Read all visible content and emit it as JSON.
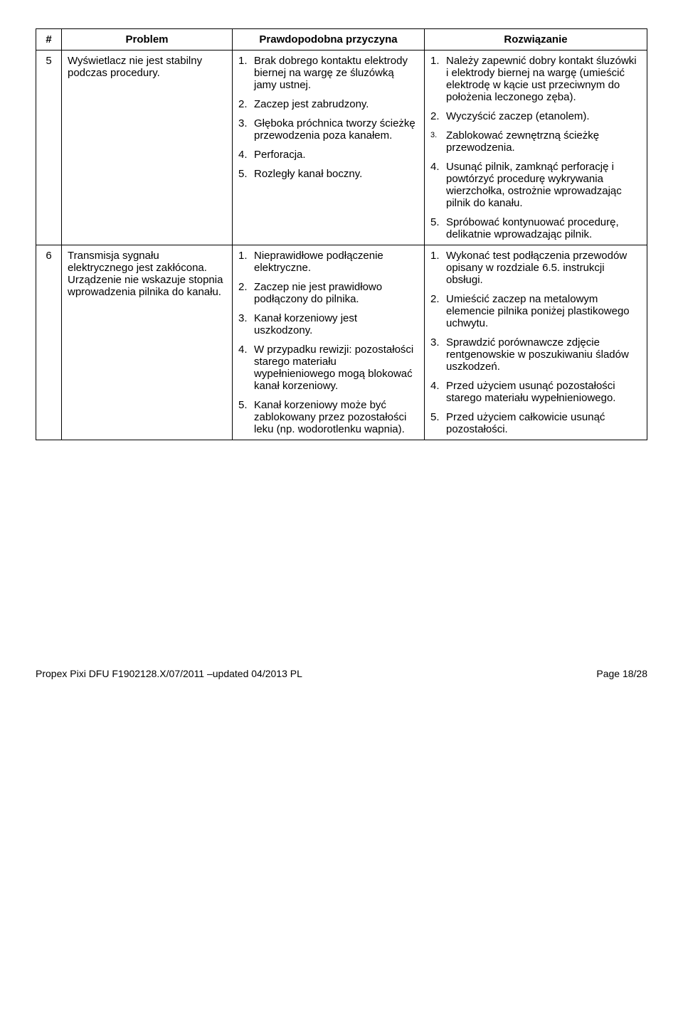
{
  "headers": {
    "num": "#",
    "problem": "Problem",
    "cause": "Prawdopodobna przyczyna",
    "solution": "Rozwiązanie"
  },
  "rows": [
    {
      "num": "5",
      "problem": "Wyświetlacz nie jest stabilny podczas procedury.",
      "causes": [
        {
          "n": "1.",
          "t": "Brak dobrego kontaktu elektrody biernej na wargę ze śluzówką jamy ustnej."
        },
        {
          "n": "2.",
          "t": "Zaczep jest zabrudzony."
        },
        {
          "n": "3.",
          "t": "Głęboka próchnica tworzy ścieżkę przewodzenia poza kanałem."
        },
        {
          "n": "4.",
          "t": "Perforacja."
        },
        {
          "n": "5.",
          "t": "Rozległy kanał boczny."
        }
      ],
      "solutions": [
        {
          "n": "1.",
          "t": "Należy zapewnić dobry kontakt śluzówki i elektrody biernej na wargę (umieścić elektrodę w kącie ust przeciwnym do położenia leczonego zęba)."
        },
        {
          "n": "2.",
          "t": "Wyczyścić zaczep (etanolem)."
        },
        {
          "n": "3.",
          "t": "Zablokować zewnętrzną ścieżkę przewodzenia.",
          "small": true
        },
        {
          "n": "4.",
          "t": "Usunąć pilnik, zamknąć perforację i powtórzyć procedurę wykrywania wierzchołka, ostrożnie wprowadzając pilnik do kanału."
        },
        {
          "n": "5.",
          "t": "Spróbować kontynuować procedurę, delikatnie wprowadzając pilnik."
        }
      ]
    },
    {
      "num": "6",
      "problem": "Transmisja sygnału elektrycznego jest zakłócona. Urządzenie nie wskazuje stopnia wprowadzenia pilnika do kanału.",
      "causes": [
        {
          "n": "1.",
          "t": "Nieprawidłowe podłączenie elektryczne."
        },
        {
          "n": "2.",
          "t": "Zaczep nie jest prawidłowo podłączony do pilnika."
        },
        {
          "n": "3.",
          "t": "Kanał korzeniowy jest uszkodzony."
        },
        {
          "n": "4.",
          "t": "W przypadku rewizji: pozostałości starego materiału wypełnieniowego mogą blokować kanał korzeniowy."
        },
        {
          "n": "5.",
          "t": "Kanał korzeniowy może być zablokowany przez pozostałości leku (np. wodorotlenku wapnia)."
        }
      ],
      "solutions": [
        {
          "n": "1.",
          "t": "Wykonać test podłączenia przewodów opisany w rozdziale 6.5. instrukcji obsługi."
        },
        {
          "n": "2.",
          "t": "Umieścić zaczep na metalowym elemencie pilnika poniżej plastikowego uchwytu."
        },
        {
          "n": "3.",
          "t": "Sprawdzić porównawcze zdjęcie rentgenowskie w poszukiwaniu śladów uszkodzeń."
        },
        {
          "n": "4.",
          "t": "Przed użyciem usunąć pozostałości starego materiału wypełnieniowego."
        },
        {
          "n": "5.",
          "t": "Przed użyciem całkowicie usunąć pozostałości."
        }
      ]
    }
  ],
  "footer": {
    "left": "Propex Pixi DFU F1902128.X/07/2011 –updated 04/2013 PL",
    "right": "Page 18/28"
  }
}
